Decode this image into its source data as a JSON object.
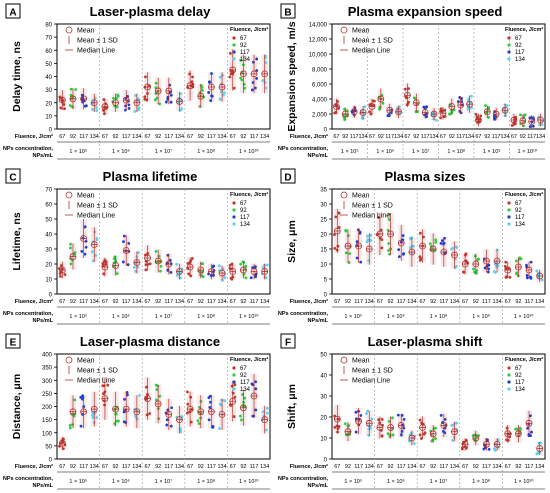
{
  "figure": {
    "legend_mean": "Mean",
    "legend_sd": "Mean ± 1 SD",
    "legend_median": "Median Line",
    "legend_title": "Fluence, J/cm²",
    "fluences": [
      "67",
      "92",
      "117",
      "134"
    ],
    "fluence_colors": [
      "#c0392b",
      "#2ecc40",
      "#1f3fd0",
      "#5fd0f0"
    ],
    "row_label_fluence": "Fluence, J/cm²",
    "row_label_np1": "NPs concentration,",
    "row_label_np2": "NPs/mL"
  },
  "chart_data": [
    {
      "letter": "A",
      "type": "scatter",
      "title": "Laser-plasma delay",
      "ylabel": "Delay time, ns",
      "ylim": [
        0,
        80
      ],
      "yticks": [
        0,
        10,
        20,
        30,
        40,
        50,
        60,
        70,
        80
      ],
      "grid": false,
      "groups": [
        {
          "concentration": "1 × 10⁵",
          "fluences": [
            "67",
            "92",
            "117",
            "134"
          ],
          "means": [
            22,
            23,
            23,
            20
          ]
        },
        {
          "concentration": "1 × 10⁶",
          "fluences": [
            "67",
            "92",
            "117",
            "134"
          ],
          "means": [
            17,
            20,
            22,
            20
          ]
        },
        {
          "concentration": "1 × 10⁷",
          "fluences": [
            "67",
            "92",
            "117",
            "134"
          ],
          "means": [
            32,
            29,
            29,
            21
          ]
        },
        {
          "concentration": "1 × 10⁸",
          "fluences": [
            "67",
            "92",
            "117",
            "134"
          ],
          "means": [
            33,
            25,
            32,
            32
          ]
        },
        {
          "concentration": "1 × 10¹⁰",
          "fluences": [
            "67",
            "92",
            "117",
            "134"
          ],
          "means": [
            45,
            42,
            42,
            42
          ]
        }
      ]
    },
    {
      "letter": "B",
      "type": "scatter",
      "title": "Plasma expansion speed",
      "ylabel": "Expansion speed, m/s",
      "ylim": [
        0,
        14000
      ],
      "yticks": [
        0,
        2000,
        4000,
        6000,
        8000,
        10000,
        12000,
        14000
      ],
      "grid": false,
      "groups": [
        {
          "concentration": "1 × 10⁵",
          "fluences": [
            "67",
            "92",
            "117",
            "134"
          ],
          "means": [
            3000,
            2000,
            2300,
            2200
          ]
        },
        {
          "concentration": "1 × 10⁶",
          "fluences": [
            "67",
            "92",
            "117",
            "134"
          ],
          "means": [
            3000,
            4000,
            2500,
            2300
          ]
        },
        {
          "concentration": "1 × 10⁷",
          "fluences": [
            "67",
            "92",
            "117",
            "134"
          ],
          "means": [
            4500,
            3500,
            2200,
            2000
          ]
        },
        {
          "concentration": "1 × 10⁸",
          "fluences": [
            "67",
            "92",
            "117",
            "134"
          ],
          "means": [
            2100,
            3000,
            3200,
            3300
          ]
        },
        {
          "concentration": "1 × 10⁹",
          "fluences": [
            "67",
            "92",
            "117",
            "134"
          ],
          "means": [
            1200,
            2300,
            2000,
            2500
          ]
        },
        {
          "concentration": "1 × 10¹⁰",
          "fluences": [
            "67",
            "92",
            "117",
            "134"
          ],
          "means": [
            1200,
            1100,
            1000,
            1200
          ]
        }
      ]
    },
    {
      "letter": "C",
      "type": "scatter",
      "title": "Plasma lifetime",
      "ylabel": "Lifetime, ns",
      "ylim": [
        0,
        70
      ],
      "yticks": [
        0,
        10,
        20,
        30,
        40,
        50,
        60,
        70
      ],
      "grid": false,
      "groups": [
        {
          "concentration": "1 × 10⁵",
          "fluences": [
            "67",
            "92",
            "117",
            "134"
          ],
          "means": [
            16,
            25,
            37,
            33
          ]
        },
        {
          "concentration": "1 × 10⁶",
          "fluences": [
            "67",
            "92",
            "117",
            "134"
          ],
          "means": [
            18,
            19,
            29,
            21
          ]
        },
        {
          "concentration": "1 × 10⁷",
          "fluences": [
            "67",
            "92",
            "117",
            "134"
          ],
          "means": [
            24,
            22,
            20,
            15
          ]
        },
        {
          "concentration": "1 × 10⁸",
          "fluences": [
            "67",
            "92",
            "117",
            "134"
          ],
          "means": [
            18,
            16,
            15,
            14
          ]
        },
        {
          "concentration": "1 × 10¹⁰",
          "fluences": [
            "67",
            "92",
            "117",
            "134"
          ],
          "means": [
            15,
            16,
            15,
            15
          ]
        }
      ]
    },
    {
      "letter": "D",
      "type": "scatter",
      "title": "Plasma sizes",
      "ylabel": "Size, μm",
      "ylim": [
        0,
        35
      ],
      "yticks": [
        0,
        5,
        10,
        15,
        20,
        25,
        30,
        35
      ],
      "grid": false,
      "groups": [
        {
          "concentration": "1 × 10⁵",
          "fluences": [
            "67",
            "92",
            "117",
            "134"
          ],
          "means": [
            21,
            16,
            16,
            15
          ]
        },
        {
          "concentration": "1 × 10⁶",
          "fluences": [
            "67",
            "92",
            "117",
            "134"
          ],
          "means": [
            20,
            20,
            17,
            14
          ]
        },
        {
          "concentration": "1 × 10⁸",
          "fluences": [
            "67",
            "92",
            "117",
            "134"
          ],
          "means": [
            16,
            15,
            14,
            13
          ]
        },
        {
          "concentration": "1 × 10⁹",
          "fluences": [
            "67",
            "92",
            "117",
            "134"
          ],
          "means": [
            10,
            10,
            11,
            11
          ]
        },
        {
          "concentration": "1 × 10¹⁰",
          "fluences": [
            "67",
            "92",
            "117",
            "134"
          ],
          "means": [
            8,
            9,
            8,
            6
          ]
        }
      ]
    },
    {
      "letter": "E",
      "type": "scatter",
      "title": "Laser-plasma distance",
      "ylabel": "Distance, μm",
      "ylim": [
        0,
        400
      ],
      "yticks": [
        0,
        50,
        100,
        150,
        200,
        250,
        300,
        350,
        400
      ],
      "grid": false,
      "groups": [
        {
          "concentration": "1 × 10⁵",
          "fluences": [
            "67",
            "92",
            "117",
            "134"
          ],
          "means": [
            60,
            180,
            180,
            190
          ]
        },
        {
          "concentration": "1 × 10⁶",
          "fluences": [
            "67",
            "92",
            "117",
            "134"
          ],
          "means": [
            230,
            190,
            190,
            180
          ]
        },
        {
          "concentration": "1 × 10⁷",
          "fluences": [
            "67",
            "92",
            "117",
            "134"
          ],
          "means": [
            230,
            210,
            170,
            150
          ]
        },
        {
          "concentration": "1 × 10⁸",
          "fluences": [
            "67",
            "92",
            "117",
            "134"
          ],
          "means": [
            190,
            180,
            180,
            170
          ]
        },
        {
          "concentration": "1 × 10¹⁰",
          "fluences": [
            "67",
            "92",
            "117",
            "134"
          ],
          "means": [
            220,
            195,
            240,
            150
          ]
        }
      ]
    },
    {
      "letter": "F",
      "type": "scatter",
      "title": "Laser-plasma shift",
      "ylabel": "Shift, μm",
      "ylim": [
        0,
        50
      ],
      "yticks": [
        0,
        10,
        20,
        30,
        40,
        50
      ],
      "grid": false,
      "groups": [
        {
          "concentration": "1 × 10⁵",
          "fluences": [
            "67",
            "92",
            "117",
            "134"
          ],
          "means": [
            19,
            13,
            18,
            17
          ]
        },
        {
          "concentration": "1 × 10⁶",
          "fluences": [
            "67",
            "92",
            "117",
            "134"
          ],
          "means": [
            15,
            15,
            16,
            10
          ]
        },
        {
          "concentration": "1 × 10⁷",
          "fluences": [
            "67",
            "92",
            "117",
            "134"
          ],
          "means": [
            15,
            12,
            16,
            13
          ]
        },
        {
          "concentration": "1 × 10⁸",
          "fluences": [
            "67",
            "92",
            "117",
            "134"
          ],
          "means": [
            7,
            10,
            7,
            7
          ]
        },
        {
          "concentration": "1 × 10¹⁰",
          "fluences": [
            "67",
            "92",
            "117",
            "134"
          ],
          "means": [
            12,
            12,
            17,
            5
          ]
        }
      ]
    }
  ]
}
